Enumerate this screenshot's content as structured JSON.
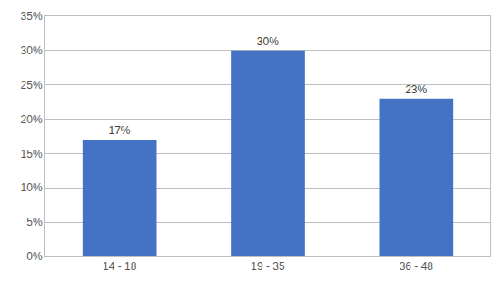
{
  "chart_data": {
    "type": "bar",
    "categories": [
      "14 - 18",
      "19 - 35",
      "36 - 48"
    ],
    "values": [
      17,
      30,
      23
    ],
    "value_labels": [
      "17%",
      "30%",
      "23%"
    ],
    "data_labels": true,
    "color": "#4472c4",
    "ylim": [
      0,
      35
    ],
    "yticks": [
      {
        "value": 0,
        "label": "0%"
      },
      {
        "value": 5,
        "label": "5%"
      },
      {
        "value": 10,
        "label": "10%"
      },
      {
        "value": 15,
        "label": "15%"
      },
      {
        "value": 20,
        "label": "20%"
      },
      {
        "value": 25,
        "label": "25%"
      },
      {
        "value": 30,
        "label": "30%"
      },
      {
        "value": 35,
        "label": "35%"
      }
    ],
    "grid": true
  }
}
